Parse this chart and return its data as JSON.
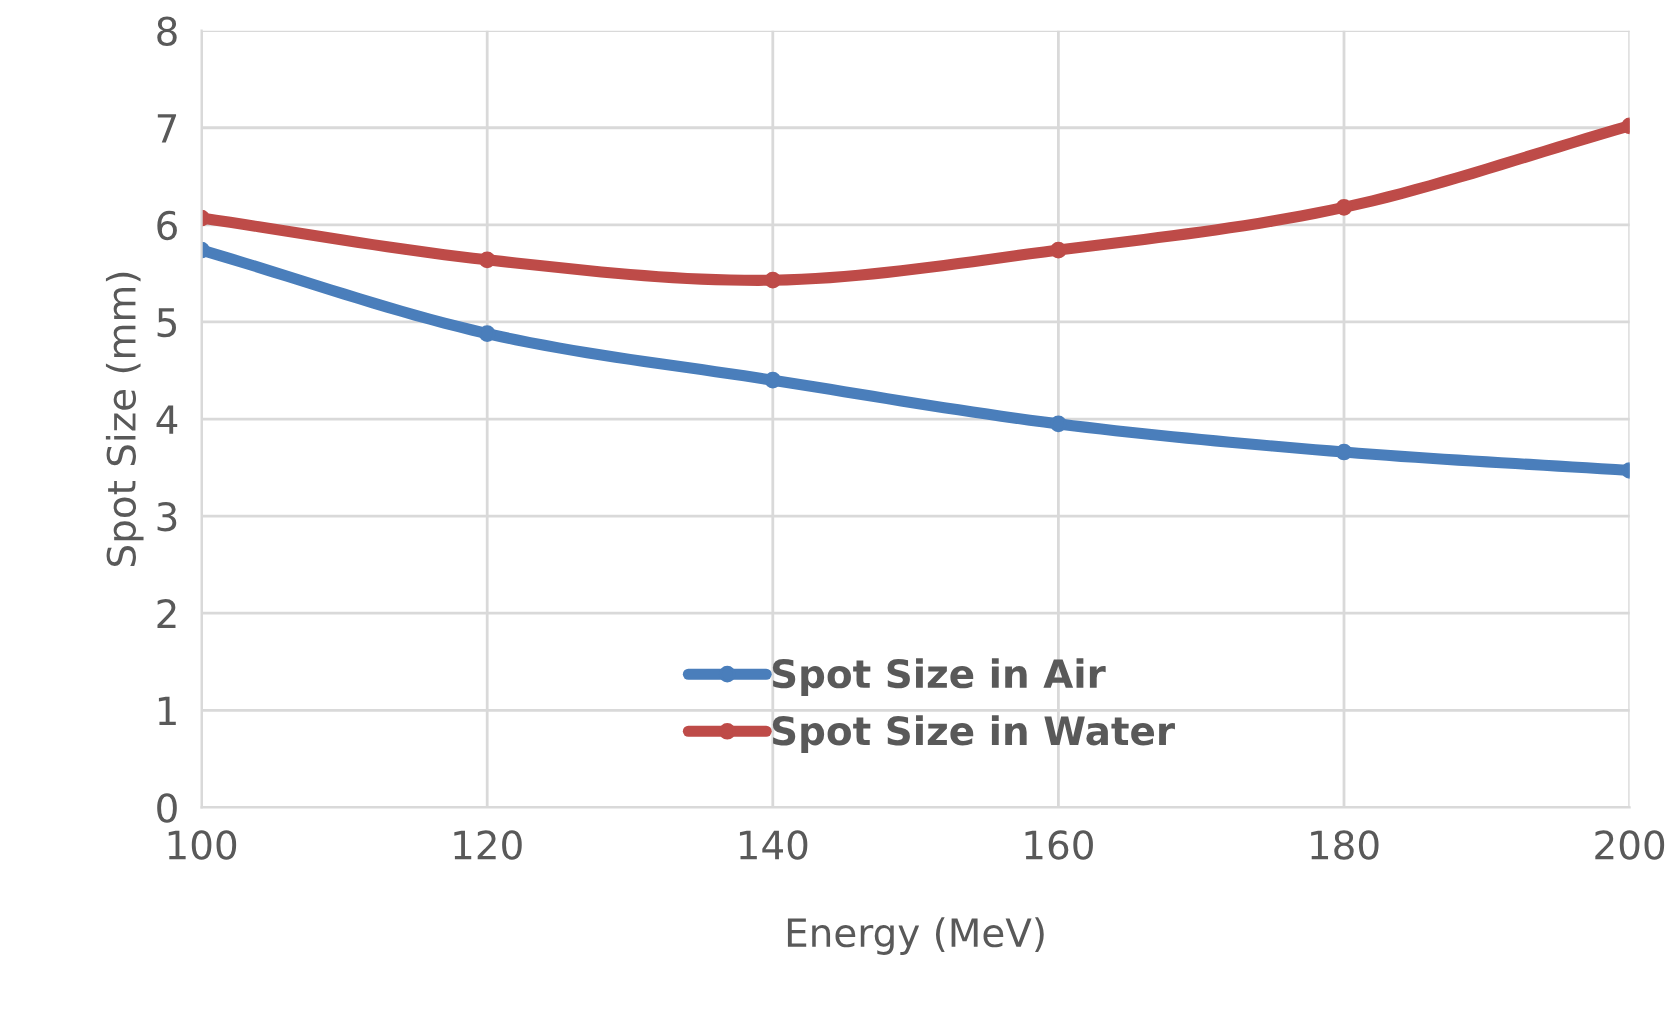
{
  "chart_data": {
    "type": "line",
    "xlabel": "Energy (MeV)",
    "ylabel": "Spot Size (mm)",
    "x": [
      100,
      120,
      140,
      160,
      180,
      200
    ],
    "series": [
      {
        "name": "Spot Size in Air",
        "color": "#4a7ebb",
        "values": [
          5.74,
          4.88,
          4.4,
          3.95,
          3.66,
          3.47
        ]
      },
      {
        "name": "Spot Size in Water",
        "color": "#be4b48",
        "values": [
          6.07,
          5.64,
          5.43,
          5.74,
          6.18,
          7.02
        ]
      }
    ],
    "xlim": [
      100,
      200
    ],
    "xticks": [
      100,
      120,
      140,
      160,
      180,
      200
    ],
    "ylim": [
      0,
      8
    ],
    "yticks": [
      0,
      1,
      2,
      3,
      4,
      5,
      6,
      7,
      8
    ],
    "grid": true,
    "legend": "bottom right",
    "marker": "circle",
    "line_style": "solid"
  }
}
